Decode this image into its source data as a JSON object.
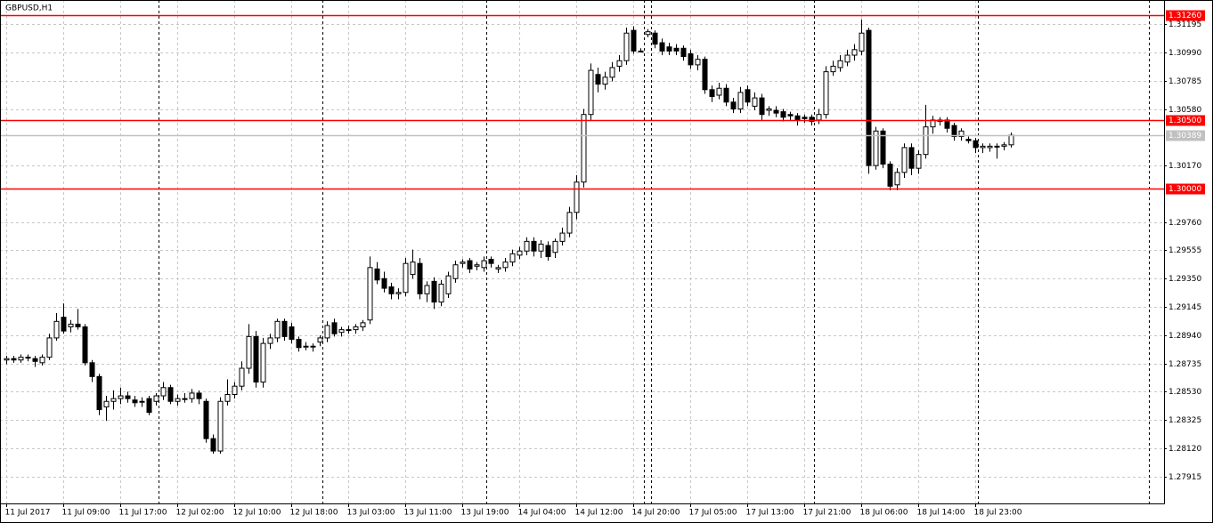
{
  "chart_data": {
    "type": "candlestick",
    "title": "GBPUSD,H1",
    "ylim": [
      1.2772,
      1.3137
    ],
    "yticks": [
      1.31195,
      {
        "value": 1.3099,
        "label": "1.30990"
      },
      1.30785,
      {
        "value": 1.3058,
        "label": "1.30580"
      },
      {
        "value": 1.3017,
        "label": "1.30170"
      },
      {
        "value": 1.2976,
        "label": "1.29760"
      },
      1.29555,
      {
        "value": 1.2935,
        "label": "1.29350"
      },
      1.29145,
      {
        "value": 1.2894,
        "label": "1.28940"
      },
      1.28735,
      {
        "value": 1.2853,
        "label": "1.28530"
      },
      1.28325,
      {
        "value": 1.2812,
        "label": "1.28120"
      },
      1.27915
    ],
    "grid": true,
    "up_color": "#ffffff",
    "down_color": "#000000",
    "hlines": [
      {
        "value": 1.3126,
        "label": "1.31260",
        "color": "#ff0000"
      },
      {
        "value": 1.305,
        "label": "1.30500",
        "color": "#ff0000"
      },
      {
        "value": 1.3,
        "label": "1.30000",
        "color": "#ff0000"
      },
      {
        "value": 1.30389,
        "label": "1.30389",
        "color": "#c0c0c0"
      }
    ],
    "categories": [
      "11 Jul 2017",
      null,
      null,
      null,
      null,
      null,
      null,
      null,
      "11 Jul 09:00",
      null,
      null,
      null,
      null,
      null,
      null,
      null,
      "11 Jul 17:00",
      null,
      null,
      null,
      null,
      null,
      null,
      null,
      "12 Jul 02:00",
      null,
      null,
      null,
      null,
      null,
      null,
      null,
      "12 Jul 10:00",
      null,
      null,
      null,
      null,
      null,
      null,
      null,
      "12 Jul 18:00",
      null,
      null,
      null,
      null,
      null,
      null,
      null,
      "13 Jul 03:00",
      null,
      null,
      null,
      null,
      null,
      null,
      null,
      "13 Jul 11:00",
      null,
      null,
      null,
      null,
      null,
      null,
      null,
      "13 Jul 19:00",
      null,
      null,
      null,
      null,
      null,
      null,
      null,
      "14 Jul 04:00",
      null,
      null,
      null,
      null,
      null,
      null,
      null,
      "14 Jul 12:00",
      null,
      null,
      null,
      null,
      null,
      null,
      null,
      "14 Jul 20:00",
      null,
      null,
      null,
      null,
      null,
      null,
      null,
      "17 Jul 05:00",
      null,
      null,
      null,
      null,
      null,
      null,
      null,
      "17 Jul 13:00",
      null,
      null,
      null,
      null,
      null,
      null,
      null,
      "17 Jul 21:00",
      null,
      null,
      null,
      null,
      null,
      null,
      null,
      "18 Jul 06:00",
      null,
      null,
      null,
      null,
      null,
      null,
      null,
      "18 Jul 14:00",
      null,
      null,
      null,
      null,
      null,
      null,
      null,
      "18 Jul 23:00",
      null,
      null,
      null,
      null,
      null
    ],
    "candles": [
      [
        1.2876,
        1.2879,
        1.2873,
        1.2877
      ],
      [
        1.2877,
        1.2879,
        1.2874,
        1.2876
      ],
      [
        1.2876,
        1.288,
        1.2874,
        1.2878
      ],
      [
        1.2878,
        1.288,
        1.2875,
        1.2878
      ],
      [
        1.2877,
        1.2879,
        1.2871,
        1.2875
      ],
      [
        1.2874,
        1.288,
        1.2872,
        1.2878
      ],
      [
        1.2878,
        1.2895,
        1.2876,
        1.2892
      ],
      [
        1.2892,
        1.291,
        1.289,
        1.2904
      ],
      [
        1.2907,
        1.2917,
        1.2895,
        1.2897
      ],
      [
        1.29,
        1.2905,
        1.2896,
        1.2902
      ],
      [
        1.2902,
        1.2913,
        1.2898,
        1.29
      ],
      [
        1.29,
        1.2902,
        1.2872,
        1.2874
      ],
      [
        1.2874,
        1.2876,
        1.286,
        1.2864
      ],
      [
        1.2864,
        1.2866,
        1.2836,
        1.284
      ],
      [
        1.2842,
        1.285,
        1.2832,
        1.2846
      ],
      [
        1.2846,
        1.2854,
        1.284,
        1.2848
      ],
      [
        1.2848,
        1.2856,
        1.2844,
        1.285
      ],
      [
        1.285,
        1.2853,
        1.2845,
        1.2848
      ],
      [
        1.2847,
        1.285,
        1.2842,
        1.2845
      ],
      [
        1.2846,
        1.2849,
        1.2842,
        1.2846
      ],
      [
        1.2848,
        1.285,
        1.2836,
        1.2838
      ],
      [
        1.2846,
        1.2852,
        1.2843,
        1.285
      ],
      [
        1.285,
        1.286,
        1.2847,
        1.2856
      ],
      [
        1.2856,
        1.2858,
        1.2844,
        1.2846
      ],
      [
        1.2846,
        1.2851,
        1.2843,
        1.2848
      ],
      [
        1.2848,
        1.2852,
        1.2845,
        1.2848
      ],
      [
        1.2848,
        1.2855,
        1.2845,
        1.2852
      ],
      [
        1.2852,
        1.2854,
        1.2844,
        1.2848
      ],
      [
        1.2846,
        1.2848,
        1.2816,
        1.2819
      ],
      [
        1.2819,
        1.2822,
        1.2808,
        1.281
      ],
      [
        1.281,
        1.2849,
        1.2808,
        1.2846
      ],
      [
        1.2846,
        1.2862,
        1.2843,
        1.2851
      ],
      [
        1.2851,
        1.286,
        1.2848,
        1.2857
      ],
      [
        1.2857,
        1.2875,
        1.2854,
        1.287
      ],
      [
        1.287,
        1.2902,
        1.2866,
        1.2893
      ],
      [
        1.2893,
        1.2897,
        1.2856,
        1.286
      ],
      [
        1.286,
        1.2892,
        1.2856,
        1.2888
      ],
      [
        1.2888,
        1.2895,
        1.2884,
        1.2892
      ],
      [
        1.2892,
        1.2906,
        1.2889,
        1.2904
      ],
      [
        1.2904,
        1.2906,
        1.289,
        1.2893
      ],
      [
        1.29,
        1.2903,
        1.2888,
        1.2891
      ],
      [
        1.2891,
        1.2893,
        1.2882,
        1.2885
      ],
      [
        1.2886,
        1.2889,
        1.2883,
        1.2886
      ],
      [
        1.2886,
        1.2888,
        1.2882,
        1.2886
      ],
      [
        1.2889,
        1.2894,
        1.2886,
        1.2892
      ],
      [
        1.2892,
        1.2904,
        1.2889,
        1.2901
      ],
      [
        1.2903,
        1.2906,
        1.2893,
        1.2895
      ],
      [
        1.2896,
        1.29,
        1.2893,
        1.2898
      ],
      [
        1.2898,
        1.2901,
        1.2895,
        1.2898
      ],
      [
        1.2898,
        1.2902,
        1.2895,
        1.29
      ],
      [
        1.29,
        1.2905,
        1.2897,
        1.2903
      ],
      [
        1.2905,
        1.2951,
        1.2902,
        1.2943
      ],
      [
        1.2942,
        1.2947,
        1.2931,
        1.2934
      ],
      [
        1.2935,
        1.294,
        1.2925,
        1.2928
      ],
      [
        1.2929,
        1.2932,
        1.292,
        1.2924
      ],
      [
        1.2924,
        1.2928,
        1.292,
        1.2925
      ],
      [
        1.2925,
        1.295,
        1.2922,
        1.2946
      ],
      [
        1.2938,
        1.2956,
        1.2935,
        1.2947
      ],
      [
        1.2946,
        1.295,
        1.292,
        1.2924
      ],
      [
        1.2924,
        1.2933,
        1.2918,
        1.293
      ],
      [
        1.2933,
        1.2936,
        1.2913,
        1.2918
      ],
      [
        1.2918,
        1.2934,
        1.2915,
        1.2931
      ],
      [
        1.2924,
        1.294,
        1.2921,
        1.2937
      ],
      [
        1.2935,
        1.2948,
        1.2932,
        1.2945
      ],
      [
        1.2946,
        1.2949,
        1.2943,
        1.2947
      ],
      [
        1.2948,
        1.295,
        1.2939,
        1.2942
      ],
      [
        1.2944,
        1.2947,
        1.2941,
        1.2945
      ],
      [
        1.2943,
        1.2951,
        1.294,
        1.2948
      ],
      [
        1.2949,
        1.2951,
        1.2943,
        1.2946
      ],
      [
        1.2942,
        1.2945,
        1.2939,
        1.2943
      ],
      [
        1.2943,
        1.295,
        1.294,
        1.2947
      ],
      [
        1.2947,
        1.2956,
        1.2944,
        1.2953
      ],
      [
        1.2952,
        1.2958,
        1.2949,
        1.2955
      ],
      [
        1.2955,
        1.2965,
        1.2952,
        1.2962
      ],
      [
        1.2962,
        1.2965,
        1.2951,
        1.2955
      ],
      [
        1.2955,
        1.2963,
        1.295,
        1.296
      ],
      [
        1.2959,
        1.2962,
        1.2948,
        1.2951
      ],
      [
        1.2954,
        1.2964,
        1.295,
        1.2962
      ],
      [
        1.2962,
        1.2972,
        1.2959,
        1.2968
      ],
      [
        1.2968,
        1.2987,
        1.2965,
        1.2983
      ],
      [
        1.2983,
        1.301,
        1.2978,
        1.3005
      ],
      [
        1.3005,
        1.3058,
        1.3001,
        1.3054
      ],
      [
        1.3054,
        1.3091,
        1.305,
        1.3086
      ],
      [
        1.3083,
        1.3088,
        1.307,
        1.3076
      ],
      [
        1.3076,
        1.3085,
        1.3072,
        1.3081
      ],
      [
        1.3081,
        1.3092,
        1.3078,
        1.3088
      ],
      [
        1.3089,
        1.3097,
        1.3085,
        1.3093
      ],
      [
        1.3093,
        1.3117,
        1.309,
        1.3113
      ],
      [
        1.3115,
        1.3118,
        1.3098,
        1.31
      ],
      [
        1.31,
        1.3102,
        1.3099,
        1.31
      ],
      [
        1.3112,
        1.3116,
        1.311,
        1.3114
      ],
      [
        1.3113,
        1.3115,
        1.3102,
        1.3105
      ],
      [
        1.3106,
        1.3109,
        1.3097,
        1.31
      ],
      [
        1.3103,
        1.3106,
        1.3097,
        1.31
      ],
      [
        1.3102,
        1.3105,
        1.3097,
        1.31
      ],
      [
        1.3102,
        1.3104,
        1.3093,
        1.3096
      ],
      [
        1.3098,
        1.3101,
        1.3087,
        1.309
      ],
      [
        1.309,
        1.3097,
        1.3086,
        1.3094
      ],
      [
        1.3094,
        1.3096,
        1.3069,
        1.3072
      ],
      [
        1.3072,
        1.3075,
        1.3063,
        1.3067
      ],
      [
        1.3068,
        1.3077,
        1.3065,
        1.3073
      ],
      [
        1.3073,
        1.3076,
        1.306,
        1.3063
      ],
      [
        1.3063,
        1.3066,
        1.3055,
        1.3058
      ],
      [
        1.3058,
        1.3074,
        1.3055,
        1.307
      ],
      [
        1.3072,
        1.3075,
        1.306,
        1.3063
      ],
      [
        1.306,
        1.307,
        1.3057,
        1.3066
      ],
      [
        1.3066,
        1.3069,
        1.305,
        1.3054
      ],
      [
        1.3057,
        1.306,
        1.3053,
        1.3058
      ],
      [
        1.3057,
        1.306,
        1.3052,
        1.3055
      ],
      [
        1.3056,
        1.3058,
        1.3049,
        1.3052
      ],
      [
        1.3054,
        1.3056,
        1.305,
        1.3053
      ],
      [
        1.3053,
        1.3055,
        1.3046,
        1.305
      ],
      [
        1.3052,
        1.3054,
        1.3048,
        1.3051
      ],
      [
        1.3052,
        1.3054,
        1.3046,
        1.3049
      ],
      [
        1.305,
        1.3058,
        1.3047,
        1.3054
      ],
      [
        1.3054,
        1.3089,
        1.3051,
        1.3085
      ],
      [
        1.3085,
        1.3093,
        1.3082,
        1.3089
      ],
      [
        1.3088,
        1.3097,
        1.3085,
        1.3093
      ],
      [
        1.3092,
        1.3101,
        1.3089,
        1.3097
      ],
      [
        1.3097,
        1.3105,
        1.3093,
        1.3101
      ],
      [
        1.31,
        1.3123,
        1.3097,
        1.3113
      ],
      [
        1.3115,
        1.3117,
        1.3011,
        1.3017
      ],
      [
        1.3017,
        1.3045,
        1.3014,
        1.3042
      ],
      [
        1.3042,
        1.3044,
        1.3015,
        1.3018
      ],
      [
        1.3018,
        1.302,
        1.2999,
        1.3002
      ],
      [
        1.3003,
        1.3015,
        1.2999,
        1.3012
      ],
      [
        1.3012,
        1.3033,
        1.3008,
        1.303
      ],
      [
        1.303,
        1.3033,
        1.301,
        1.3015
      ],
      [
        1.3015,
        1.3028,
        1.3011,
        1.3025
      ],
      [
        1.3025,
        1.3061,
        1.3022,
        1.3045
      ],
      [
        1.3045,
        1.3053,
        1.304,
        1.305
      ],
      [
        1.305,
        1.3052,
        1.3046,
        1.3049
      ],
      [
        1.305,
        1.3052,
        1.3041,
        1.3044
      ],
      [
        1.3046,
        1.3048,
        1.3035,
        1.3038
      ],
      [
        1.3038,
        1.3044,
        1.3035,
        1.3042
      ],
      [
        1.3036,
        1.3038,
        1.3033,
        1.3035
      ],
      [
        1.3035,
        1.3037,
        1.3026,
        1.303
      ],
      [
        1.303,
        1.3033,
        1.3026,
        1.3031
      ],
      [
        1.303,
        1.3033,
        1.3027,
        1.3031
      ],
      [
        1.3031,
        1.3033,
        1.3022,
        1.3031
      ],
      [
        1.3031,
        1.3034,
        1.3028,
        1.3032
      ],
      [
        1.3032,
        1.3041,
        1.303,
        1.3039
      ]
    ]
  }
}
